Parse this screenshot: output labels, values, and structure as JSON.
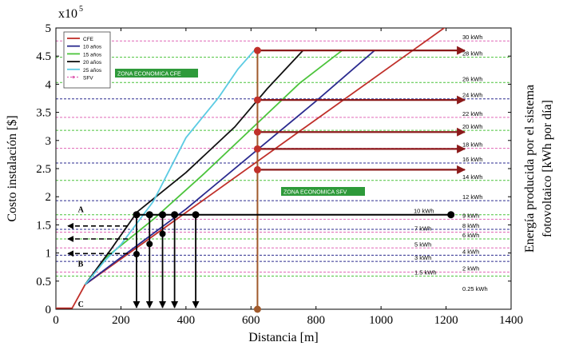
{
  "chart_data": {
    "type": "line",
    "exponent_label": "x10",
    "exponent_sup": "5",
    "xlabel": "Distancia [m]",
    "ylabel": "Costo instalación [$]",
    "right_label_line1": "Energía producida por el sistema",
    "right_label_line2": "fotovoltaico [kWh por día]",
    "xlim": [
      0,
      1400
    ],
    "ylim": [
      0,
      5
    ],
    "xticks": [
      0,
      200,
      400,
      600,
      800,
      1000,
      1200,
      1400
    ],
    "yticks": [
      0,
      0.5,
      1,
      1.5,
      2,
      2.5,
      3,
      3.5,
      4,
      4.5,
      5
    ],
    "ytick_labels": [
      "0",
      "0.5",
      "1",
      "1.5",
      "2",
      "2.5",
      "3",
      "3.5",
      "4",
      "4.5",
      "5"
    ],
    "legend_position": "top-left",
    "series": [
      {
        "name": "CFE",
        "color": "#c0302a",
        "x": [
          0,
          50,
          90,
          1400
        ],
        "y": [
          0.02,
          0.02,
          0.44,
          5.85
        ]
      },
      {
        "name": "10 años",
        "color": "#2b2b8f",
        "x": [
          90,
          200,
          400,
          600,
          800,
          980
        ],
        "y": [
          0.44,
          0.92,
          1.78,
          2.74,
          3.7,
          4.6
        ]
      },
      {
        "name": "15 años",
        "color": "#4cc43c",
        "x": [
          90,
          150,
          300,
          450,
          600,
          750,
          880
        ],
        "y": [
          0.44,
          0.9,
          1.6,
          2.38,
          3.2,
          4.02,
          4.6
        ]
      },
      {
        "name": "20 años",
        "color": "#111111",
        "x": [
          90,
          170,
          250,
          400,
          550,
          650,
          760
        ],
        "y": [
          0.44,
          1.07,
          1.73,
          2.43,
          3.24,
          3.92,
          4.6
        ]
      },
      {
        "name": "25 años",
        "color": "#5ccbe3",
        "x": [
          90,
          150,
          200,
          300,
          400,
          500,
          560,
          610
        ],
        "y": [
          0.44,
          0.86,
          1.15,
          1.92,
          3.05,
          3.76,
          4.27,
          4.6
        ]
      }
    ],
    "legend_extra": {
      "name": "SFV",
      "color": "#e067b6"
    },
    "energy_levels": [
      {
        "label": "30 kWh",
        "y": 4.77,
        "color": "#e067b6"
      },
      {
        "label": "28 kWh",
        "y": 4.48,
        "color": "#4cc43c"
      },
      {
        "label": "26 kWh",
        "y": 4.03,
        "color": "#4cc43c"
      },
      {
        "label": "24 kWh",
        "y": 3.74,
        "color": "#2b2b8f"
      },
      {
        "label": "22 kWh",
        "y": 3.41,
        "color": "#e067b6"
      },
      {
        "label": "20 kWh",
        "y": 3.18,
        "color": "#4cc43c"
      },
      {
        "label": "18 kWh",
        "y": 2.86,
        "color": "#e067b6"
      },
      {
        "label": "16 kWh",
        "y": 2.6,
        "color": "#2b2b8f"
      },
      {
        "label": "14 kWh",
        "y": 2.29,
        "color": "#4cc43c"
      },
      {
        "label": "12 kWh",
        "y": 1.93,
        "color": "#2b2b8f"
      },
      {
        "label": "10 kWh",
        "y": 1.68,
        "color": "#4cc43c"
      },
      {
        "label": "9 kWh",
        "y": 1.6,
        "color": "#e067b6"
      },
      {
        "label": "8 kWh",
        "y": 1.42,
        "color": "#2b2b8f"
      },
      {
        "label": "7 kWh",
        "y": 1.37,
        "color": "#e067b6"
      },
      {
        "label": "6 kWh",
        "y": 1.25,
        "color": "#4cc43c"
      },
      {
        "label": "5 kWh",
        "y": 1.09,
        "color": "#e067b6"
      },
      {
        "label": "4 kWh",
        "y": 0.96,
        "color": "#2b2b8f"
      },
      {
        "label": "3 kWh",
        "y": 0.85,
        "color": "#2b2b8f"
      },
      {
        "label": "2 kWh",
        "y": 0.66,
        "color": "#e067b6"
      },
      {
        "label": "1.5 kWh",
        "y": 0.59,
        "color": "#4cc43c"
      },
      {
        "label": "0.25 kWh",
        "y": 0.37,
        "color": "#ffffff"
      }
    ],
    "zone_cfe": "ZONA ECONOMICA CFE",
    "zone_sfv": "ZONA ECONOMICA SFV",
    "zone_color": "#2e9a3a",
    "vertical_line": {
      "x": 620,
      "color": "#a05a2c",
      "y_top": 4.6
    },
    "red_arrows": [
      4.6,
      3.72,
      3.15,
      2.85,
      2.48
    ],
    "black_line": {
      "x_start": 430,
      "x_end": 1215,
      "y": 1.68
    },
    "drops": [
      {
        "x": 248,
        "y_top": 1.68,
        "y_bottom": 0.98
      },
      {
        "x": 288,
        "y_top": 1.68,
        "y_bottom": 1.16
      },
      {
        "x": 328,
        "y_top": 1.68,
        "y_bottom": 1.34
      },
      {
        "x": 365,
        "y_top": 1.68
      },
      {
        "x": 430,
        "y_top": 1.68
      }
    ],
    "dashed_arrows": [
      1.48,
      1.25,
      0.99
    ],
    "point_labels": [
      {
        "text": "A",
        "x": 225,
        "y": 1.78
      },
      {
        "text": "B",
        "x": 225,
        "y": 0.82
      },
      {
        "text": "C",
        "x": 225,
        "y": 0.1
      }
    ]
  }
}
